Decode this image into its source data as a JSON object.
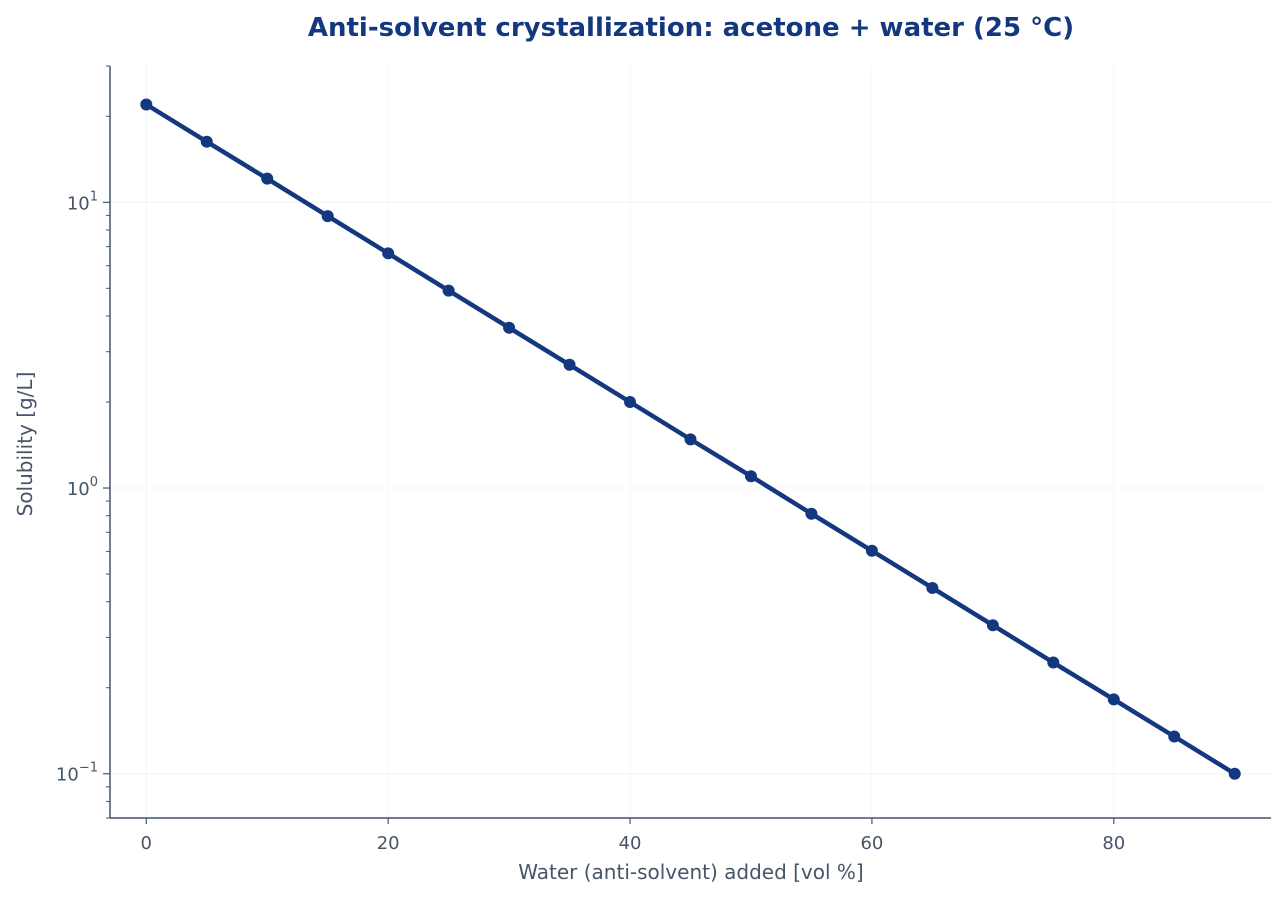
{
  "chart_data": {
    "type": "line",
    "title": "Anti-solvent crystallization: acetone + water (25 °C)",
    "xlabel": "Water (anti-solvent) added [vol %]",
    "ylabel": "Solubility [g/L]",
    "x_ticks": [
      0,
      20,
      40,
      60,
      80
    ],
    "y_ticks": [
      {
        "value": 0.1,
        "base": "10",
        "exp": "−1"
      },
      {
        "value": 1,
        "base": "10",
        "exp": "0"
      },
      {
        "value": 10,
        "base": "10",
        "exp": "1"
      }
    ],
    "xlim": [
      -3,
      93
    ],
    "ylim": [
      0.07,
      30
    ],
    "y_scale": "log",
    "grid": true,
    "colors": {
      "title": "#14387f",
      "series": "#14387f",
      "axis": "#475569",
      "axis_text": "#475569",
      "grid": "#f1f5f9"
    },
    "series": [
      {
        "x": [
          0,
          5,
          10,
          15,
          20,
          25,
          30,
          35,
          40,
          45,
          50,
          55,
          60,
          65,
          70,
          75,
          80,
          85,
          90
        ],
        "values": [
          22.0,
          16.3,
          12.1,
          8.95,
          6.63,
          4.91,
          3.64,
          2.7,
          2.0,
          1.48,
          1.1,
          0.813,
          0.603,
          0.447,
          0.331,
          0.245,
          0.182,
          0.135,
          0.1
        ]
      }
    ]
  }
}
